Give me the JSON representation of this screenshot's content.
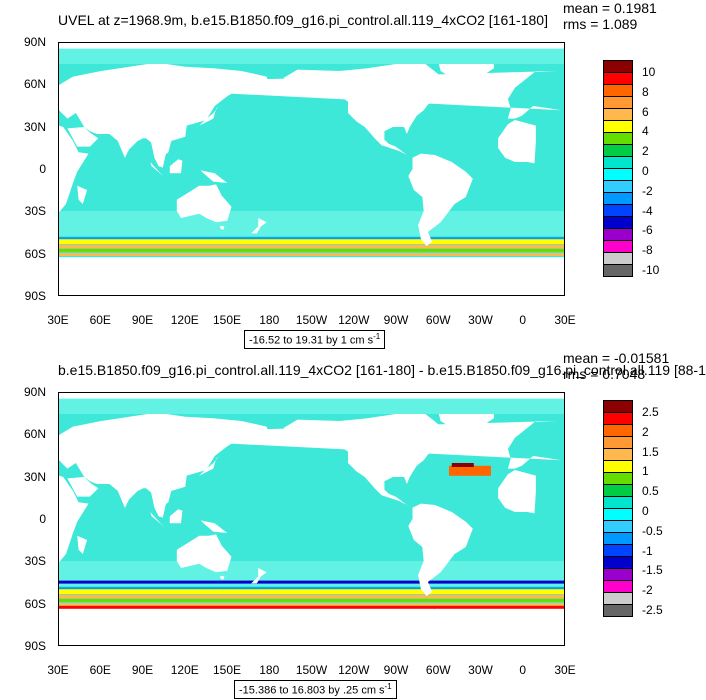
{
  "panels": [
    {
      "title": "UVEL at z=1968.9m, b.e15.B1850.f09_g16.pi_control.all.119_4xCO2 [161-180]",
      "stats": {
        "mean": "mean = 0.1981",
        "rms": "rms = 1.089"
      },
      "range_text": "-16.52 to 19.31 by 1 cm s",
      "range_sup": "-1",
      "y_ticks": [
        "90N",
        "60N",
        "30N",
        "0",
        "30S",
        "60S",
        "90S"
      ],
      "x_ticks": [
        "30E",
        "60E",
        "90E",
        "120E",
        "150E",
        "180",
        "150W",
        "120W",
        "90W",
        "60W",
        "30W",
        "0",
        "30E"
      ],
      "colorbar_labels": [
        "10",
        "8",
        "6",
        "4",
        "2",
        "0",
        "-2",
        "-4",
        "-6",
        "-8",
        "-10"
      ],
      "colorbar_colors": [
        "#8b0000",
        "#ff0000",
        "#ff6600",
        "#ff9933",
        "#ffb84d",
        "#ffff00",
        "#66dd00",
        "#00cc44",
        "#00e5cc",
        "#00ffff",
        "#33ccff",
        "#0099ff",
        "#0044ff",
        "#0000cc",
        "#9900cc",
        "#ff00cc",
        "#cccccc",
        "#666666"
      ]
    },
    {
      "title": "b.e15.B1850.f09_g16.pi_control.all.119_4xCO2 [161-180] - b.e15.B1850.f09_g16.pi_control.all.119 [88-1",
      "stats": {
        "mean": "mean = -0.01581",
        "rms": "rms = 0.7048"
      },
      "range_text": "-15.386 to 16.803 by .25 cm s",
      "range_sup": "-1",
      "y_ticks": [
        "90N",
        "60N",
        "30N",
        "0",
        "30S",
        "60S",
        "90S"
      ],
      "x_ticks": [
        "30E",
        "60E",
        "90E",
        "120E",
        "150E",
        "180",
        "150W",
        "120W",
        "90W",
        "60W",
        "30W",
        "0",
        "30E"
      ],
      "colorbar_labels": [
        "2.5",
        "2",
        "1.5",
        "1",
        "0.5",
        "0",
        "-0.5",
        "-1",
        "-1.5",
        "-2",
        "-2.5"
      ],
      "colorbar_colors": [
        "#8b0000",
        "#ff0000",
        "#ff6600",
        "#ff9933",
        "#ffb84d",
        "#ffff00",
        "#66dd00",
        "#00cc44",
        "#00e5cc",
        "#00ffff",
        "#33ccff",
        "#0099ff",
        "#0044ff",
        "#0000cc",
        "#9900cc",
        "#ff00cc",
        "#cccccc",
        "#666666"
      ]
    }
  ],
  "ocean_color": "#3ee8d8",
  "ocean_light_color": "#62f2e4",
  "land_color": "#ffffff"
}
